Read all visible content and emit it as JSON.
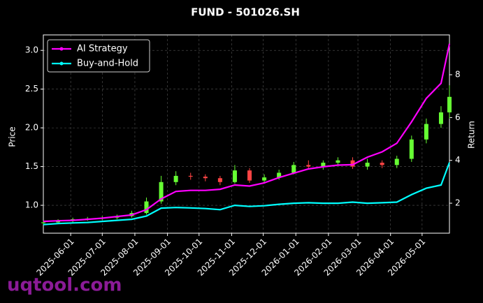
{
  "chart_data": {
    "type": "candlestick",
    "title": "FUND - 501026.SH",
    "ylabel": "Price",
    "y2label": "Return",
    "watermark": "uqtool.com",
    "x": [
      "2025-05-06",
      "2025-05-20",
      "2025-06-03",
      "2025-06-17",
      "2025-07-01",
      "2025-07-15",
      "2025-07-29",
      "2025-08-12",
      "2025-08-26",
      "2025-09-09",
      "2025-09-23",
      "2025-10-07",
      "2025-10-21",
      "2025-11-04",
      "2025-11-18",
      "2025-12-02",
      "2025-12-16",
      "2025-12-30",
      "2026-01-13",
      "2026-01-27",
      "2026-02-10",
      "2026-02-24",
      "2026-03-10",
      "2026-03-24",
      "2026-04-07",
      "2026-04-21",
      "2026-05-05",
      "2026-05-19",
      "2026-05-27"
    ],
    "open": [
      0.77,
      0.78,
      0.8,
      0.82,
      0.83,
      0.84,
      0.86,
      0.9,
      1.05,
      1.3,
      1.38,
      1.37,
      1.35,
      1.3,
      1.45,
      1.32,
      1.36,
      1.42,
      1.52,
      1.5,
      1.55,
      1.58,
      1.5,
      1.55,
      1.52,
      1.6,
      1.85,
      2.05,
      2.2
    ],
    "high": [
      0.8,
      0.82,
      0.84,
      0.85,
      0.86,
      0.88,
      0.93,
      1.1,
      1.38,
      1.44,
      1.42,
      1.4,
      1.38,
      1.52,
      1.48,
      1.4,
      1.46,
      1.56,
      1.58,
      1.58,
      1.62,
      1.62,
      1.6,
      1.58,
      1.64,
      1.9,
      2.12,
      2.28,
      2.55
    ],
    "low": [
      0.75,
      0.76,
      0.78,
      0.8,
      0.81,
      0.82,
      0.84,
      0.88,
      1.02,
      1.26,
      1.33,
      1.31,
      1.26,
      1.28,
      1.29,
      1.29,
      1.33,
      1.4,
      1.46,
      1.46,
      1.52,
      1.47,
      1.46,
      1.48,
      1.48,
      1.56,
      1.8,
      2.0,
      2.12
    ],
    "close": [
      0.78,
      0.8,
      0.82,
      0.83,
      0.84,
      0.86,
      0.9,
      1.05,
      1.3,
      1.38,
      1.37,
      1.35,
      1.3,
      1.45,
      1.32,
      1.36,
      1.42,
      1.52,
      1.5,
      1.55,
      1.58,
      1.5,
      1.55,
      1.52,
      1.6,
      1.85,
      2.05,
      2.2,
      2.4
    ],
    "up_color": "#66ff33",
    "down_color": "#ff4444",
    "series": [
      {
        "name": "AI Strategy",
        "color": "#ff00ff",
        "axis": "y2",
        "values": [
          1.15,
          1.18,
          1.2,
          1.25,
          1.3,
          1.38,
          1.45,
          1.7,
          2.2,
          2.55,
          2.6,
          2.6,
          2.65,
          2.85,
          2.8,
          2.95,
          3.2,
          3.4,
          3.6,
          3.7,
          3.78,
          3.8,
          4.15,
          4.4,
          4.8,
          5.8,
          6.9,
          7.6,
          9.45
        ]
      },
      {
        "name": "Buy-and-Hold",
        "color": "#00ffff",
        "axis": "y2",
        "values": [
          1.0,
          1.05,
          1.08,
          1.1,
          1.15,
          1.2,
          1.25,
          1.4,
          1.77,
          1.8,
          1.78,
          1.75,
          1.7,
          1.9,
          1.85,
          1.88,
          1.95,
          2.0,
          2.02,
          2.0,
          2.0,
          2.05,
          2.0,
          2.02,
          2.05,
          2.4,
          2.7,
          2.85,
          3.9
        ]
      }
    ],
    "xlim": [
      "2025-05-06",
      "2026-05-27"
    ],
    "xticks": [
      "2025-06-01",
      "2025-07-01",
      "2025-08-01",
      "2025-09-01",
      "2025-10-01",
      "2025-11-01",
      "2025-12-01",
      "2026-01-01",
      "2026-02-01",
      "2026-03-01",
      "2026-04-01",
      "2026-05-01"
    ],
    "ylim": [
      0.64,
      3.2
    ],
    "yticks": [
      {
        "value": 1.0,
        "label": "1.0"
      },
      1.5,
      {
        "value": 2.0,
        "label": "2.0"
      },
      2.5,
      {
        "value": 3.0,
        "label": "3.0"
      }
    ],
    "y2lim": [
      0.6,
      9.86
    ],
    "y2ticks": [
      2,
      4,
      6,
      8
    ],
    "legend": "upper left",
    "grid": true
  }
}
